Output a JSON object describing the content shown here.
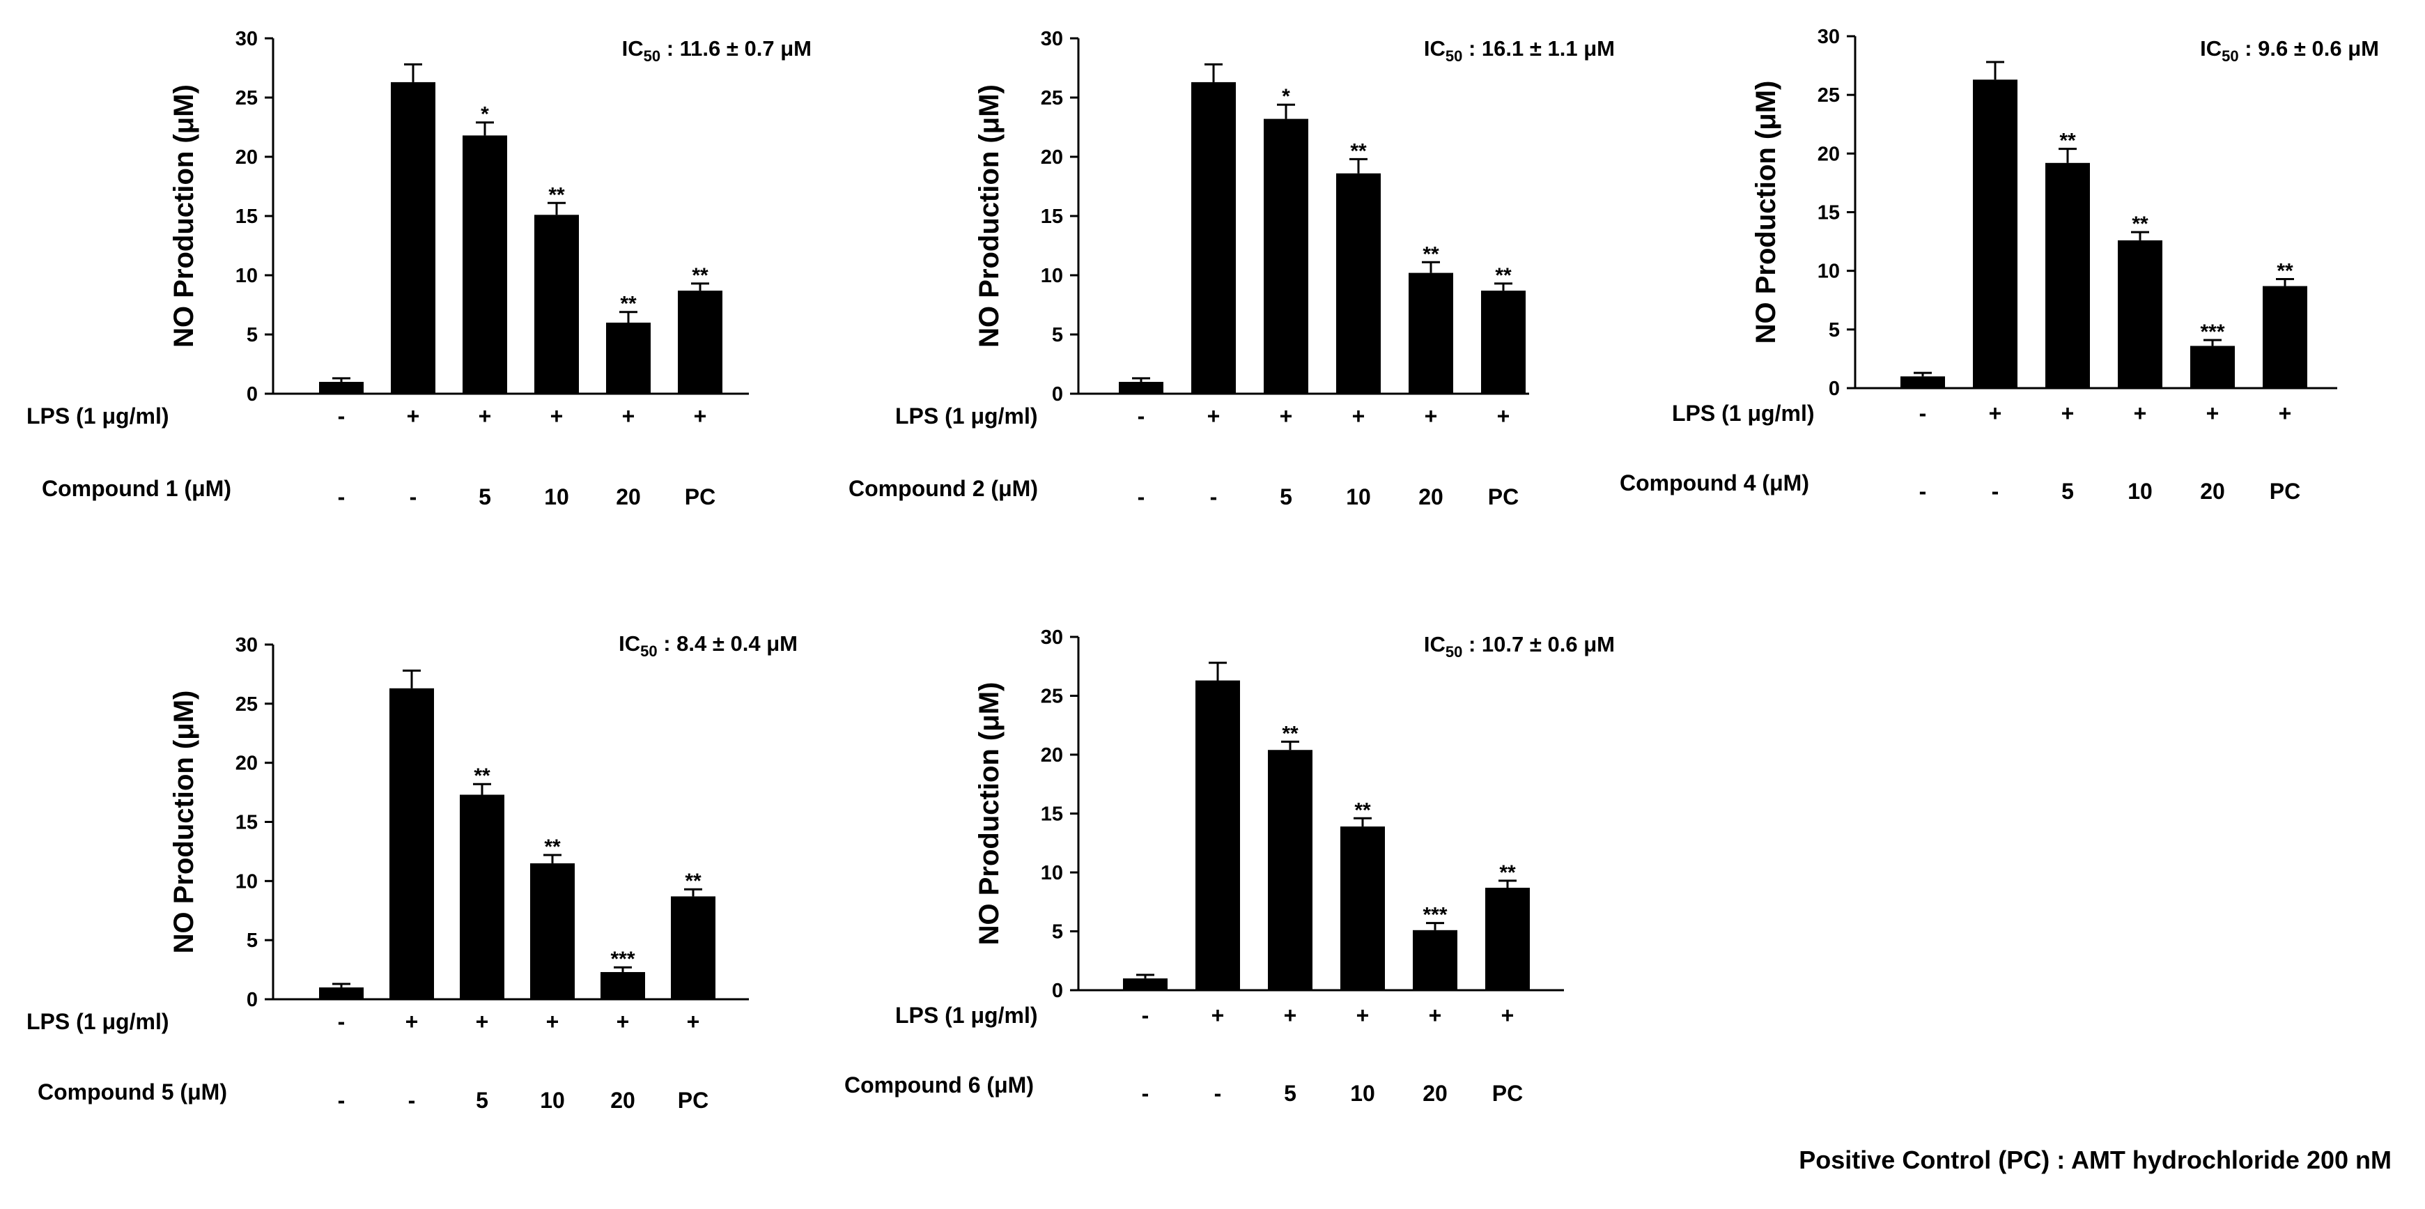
{
  "figure": {
    "footnote": "Positive Control (PC) : AMT hydrochloride 200 nM",
    "lps_row_label": "LPS (1 μg/ml)",
    "lps_values": [
      "-",
      "+",
      "+",
      "+",
      "+",
      "+"
    ],
    "error_bars_shown": true
  },
  "chart_data": [
    {
      "type": "bar",
      "panel": "compound-1",
      "ylabel": "NO Production (μM)",
      "ylim": [
        0,
        30
      ],
      "yticks": [
        0,
        5,
        10,
        15,
        20,
        25,
        30
      ],
      "ic50": {
        "prefix": "IC",
        "sub": "50",
        "suffix": " : 11.6 ± 0.7 μM"
      },
      "compound_label": "Compound 1 (μM)",
      "categories": [
        "-",
        "-",
        "5",
        "10",
        "20",
        "PC"
      ],
      "values": [
        1.0,
        26.3,
        21.8,
        15.1,
        6.0,
        8.7
      ],
      "errors": [
        0.3,
        1.5,
        1.1,
        1.0,
        0.9,
        0.6
      ],
      "significance": [
        "",
        "",
        "*",
        "**",
        "**",
        "**"
      ]
    },
    {
      "type": "bar",
      "panel": "compound-2",
      "ylabel": "NO Production (μM)",
      "ylim": [
        0,
        30
      ],
      "yticks": [
        0,
        5,
        10,
        15,
        20,
        25,
        30
      ],
      "ic50": {
        "prefix": "IC",
        "sub": "50",
        "suffix": " : 16.1 ± 1.1 μM"
      },
      "compound_label": "Compound 2 (μM)",
      "categories": [
        "-",
        "-",
        "5",
        "10",
        "20",
        "PC"
      ],
      "values": [
        1.0,
        26.3,
        23.2,
        18.6,
        10.2,
        8.7
      ],
      "errors": [
        0.3,
        1.5,
        1.2,
        1.2,
        0.9,
        0.6
      ],
      "significance": [
        "",
        "",
        "*",
        "**",
        "**",
        "**"
      ]
    },
    {
      "type": "bar",
      "panel": "compound-4",
      "ylabel": "NO Production (μM)",
      "ylim": [
        0,
        30
      ],
      "yticks": [
        0,
        5,
        10,
        15,
        20,
        25,
        30
      ],
      "ic50": {
        "prefix": "IC",
        "sub": "50",
        "suffix": " : 9.6 ± 0.6 μM"
      },
      "compound_label": "Compound 4 (μM)",
      "categories": [
        "-",
        "-",
        "5",
        "10",
        "20",
        "PC"
      ],
      "values": [
        1.0,
        26.3,
        19.2,
        12.6,
        3.6,
        8.7
      ],
      "errors": [
        0.3,
        1.5,
        1.2,
        0.7,
        0.5,
        0.6
      ],
      "significance": [
        "",
        "",
        "**",
        "**",
        "***",
        "**"
      ]
    },
    {
      "type": "bar",
      "panel": "compound-5",
      "ylabel": "NO Production (μM)",
      "ylim": [
        0,
        30
      ],
      "yticks": [
        0,
        5,
        10,
        15,
        20,
        25,
        30
      ],
      "ic50": {
        "prefix": "IC",
        "sub": "50",
        "suffix": " : 8.4 ± 0.4  μM"
      },
      "compound_label": "Compound 5 (μM)",
      "categories": [
        "-",
        "-",
        "5",
        "10",
        "20",
        "PC"
      ],
      "values": [
        1.0,
        26.3,
        17.3,
        11.5,
        2.3,
        8.7
      ],
      "errors": [
        0.3,
        1.5,
        0.9,
        0.7,
        0.4,
        0.6
      ],
      "significance": [
        "",
        "",
        "**",
        "**",
        "***",
        "**"
      ]
    },
    {
      "type": "bar",
      "panel": "compound-6",
      "ylabel": "NO Production (μM)",
      "ylim": [
        0,
        30
      ],
      "yticks": [
        0,
        5,
        10,
        15,
        20,
        25,
        30
      ],
      "ic50": {
        "prefix": "IC",
        "sub": "50",
        "suffix": " : 10.7 ± 0.6 μM"
      },
      "compound_label": "Compound 6 (μM)",
      "categories": [
        "-",
        "-",
        "5",
        "10",
        "20",
        "PC"
      ],
      "values": [
        1.0,
        26.3,
        20.4,
        13.9,
        5.1,
        8.7
      ],
      "errors": [
        0.3,
        1.5,
        0.7,
        0.7,
        0.6,
        0.6
      ],
      "significance": [
        "",
        "",
        "**",
        "**",
        "***",
        "**"
      ]
    }
  ]
}
